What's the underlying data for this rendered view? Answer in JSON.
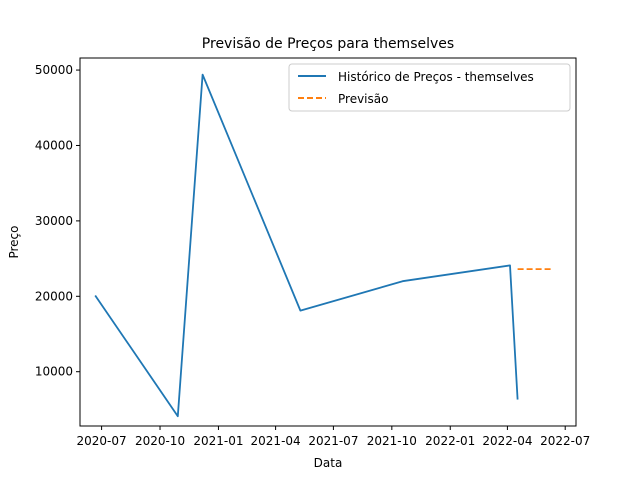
{
  "colors": {
    "history": "#1f77b4",
    "forecast": "#ff7f0e"
  },
  "chart_data": {
    "type": "line",
    "title": "Previsão de Preços para themselves",
    "xlabel": "Data",
    "ylabel": "Preço",
    "x_ticks": [
      "2020-07",
      "2020-10",
      "2021-01",
      "2021-04",
      "2021-07",
      "2021-10",
      "2022-01",
      "2022-04",
      "2022-07"
    ],
    "y_ticks": [
      10000,
      20000,
      30000,
      40000,
      50000
    ],
    "xlim": [
      "2020-05-28",
      "2022-07-18"
    ],
    "ylim": [
      2800,
      51600
    ],
    "grid": false,
    "legend_position": "top-right",
    "series": [
      {
        "name": "Histórico de Preços - themselves",
        "style": "solid",
        "points": [
          {
            "x": "2020-06-21",
            "y": 20100
          },
          {
            "x": "2020-10-29",
            "y": 4100
          },
          {
            "x": "2020-12-07",
            "y": 49400
          },
          {
            "x": "2021-05-10",
            "y": 18100
          },
          {
            "x": "2021-10-18",
            "y": 22000
          },
          {
            "x": "2022-04-05",
            "y": 24100
          },
          {
            "x": "2022-04-17",
            "y": 6300
          }
        ]
      },
      {
        "name": "Previsão",
        "style": "dashed",
        "points": [
          {
            "x": "2022-04-17",
            "y": 23600
          },
          {
            "x": "2022-06-10",
            "y": 23600
          }
        ]
      }
    ]
  }
}
